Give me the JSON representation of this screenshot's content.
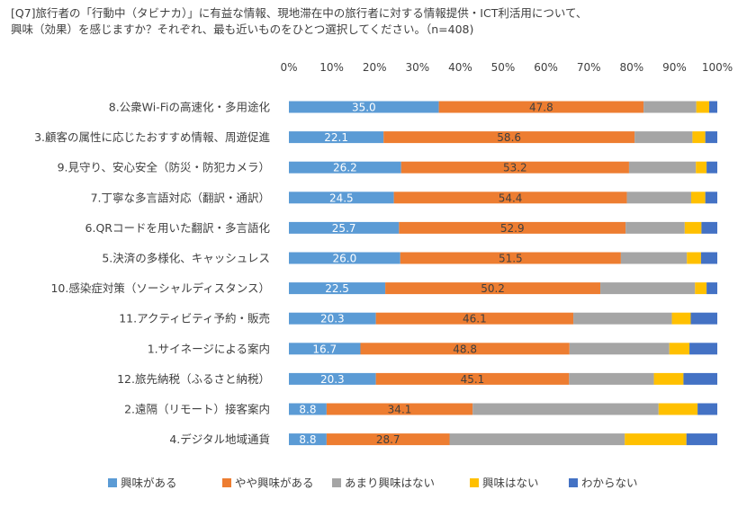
{
  "chart_data": {
    "type": "bar",
    "stacked": true,
    "orientation": "horizontal",
    "percent_stacked": true,
    "title": "[Q7]旅行者の「行動中（タビナカ）」に有益な情報、現地滞在中の旅行者に対する情報提供・ICT利活用について、",
    "subtitle": "興味（効果）を感じますか？それぞれ、最も近いものをひとつ選択してください。（n=408)",
    "xlim": [
      0,
      100
    ],
    "x_ticks": [
      "0%",
      "10%",
      "20%",
      "30%",
      "40%",
      "50%",
      "60%",
      "70%",
      "80%",
      "90%",
      "100%"
    ],
    "grid": false,
    "legend_position": "bottom",
    "categories": [
      "8.公衆Wi-Fiの高速化・多用途化",
      "3.顧客の属性に応じたおすすめ情報、周遊促進",
      "9.見守り、安心安全（防災・防犯カメラ）",
      "7.丁寧な多言語対応（翻訳・通訳）",
      "6.QRコードを用いた翻訳・多言語化",
      "5.決済の多様化、キャッシュレス",
      "10.感染症対策（ソーシャルディスタンス）",
      "11.アクティビティ予約・販売",
      "1.サイネージによる案内",
      "12.旅先納税（ふるさと納税）",
      "2.遠隔（リモート）接客案内",
      "4.デジタル地域通貨"
    ],
    "series": [
      {
        "name": "興味がある",
        "color": "#5b9bd5",
        "label_color": "#ffffff",
        "show_labels": true,
        "values": [
          35.0,
          22.1,
          26.2,
          24.5,
          25.7,
          26.0,
          22.5,
          20.3,
          16.7,
          20.3,
          8.8,
          8.8
        ],
        "labels": [
          "35.0",
          "22.1",
          "26.2",
          "24.5",
          "25.7",
          "26.0",
          "22.5",
          "20.3",
          "16.7",
          "20.3",
          "8.8",
          "8.8"
        ]
      },
      {
        "name": "やや興味がある",
        "color": "#ed7d31",
        "label_color": "#404040",
        "show_labels": true,
        "values": [
          47.8,
          58.6,
          53.2,
          54.4,
          52.9,
          51.5,
          50.2,
          46.1,
          48.8,
          45.1,
          34.1,
          28.7
        ],
        "labels": [
          "47.8",
          "58.6",
          "53.2",
          "54.4",
          "52.9",
          "51.5",
          "50.2",
          "46.1",
          "48.8",
          "45.1",
          "34.1",
          "28.7"
        ]
      },
      {
        "name": "あまり興味はない",
        "color": "#a5a5a5",
        "show_labels": false,
        "values": [
          12.3,
          13.5,
          15.6,
          15.0,
          13.8,
          15.4,
          22.1,
          23.0,
          23.3,
          19.8,
          43.4,
          40.9
        ]
      },
      {
        "name": "興味はない",
        "color": "#ffc000",
        "show_labels": false,
        "values": [
          3.0,
          3.0,
          2.5,
          3.3,
          3.9,
          3.3,
          2.7,
          4.4,
          4.7,
          6.9,
          9.1,
          14.4
        ]
      },
      {
        "name": "わからない",
        "color": "#4472c4",
        "show_labels": false,
        "values": [
          1.9,
          2.8,
          2.5,
          2.8,
          3.7,
          3.8,
          2.5,
          6.2,
          6.5,
          7.9,
          4.6,
          7.2
        ]
      }
    ]
  }
}
